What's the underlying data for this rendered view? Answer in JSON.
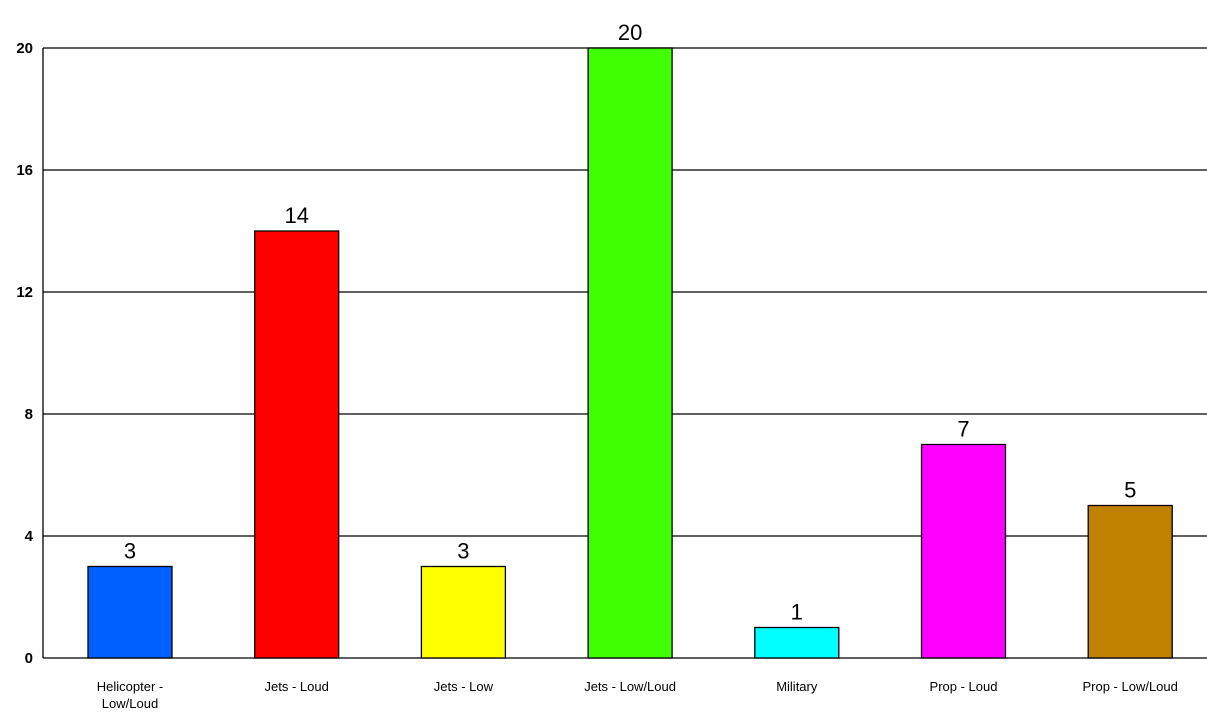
{
  "chart_data": {
    "type": "bar",
    "title": "",
    "xlabel": "",
    "ylabel": "",
    "ylim": [
      0,
      20
    ],
    "yticks": [
      0,
      4,
      8,
      12,
      16,
      20
    ],
    "grid": true,
    "categories": [
      [
        "Helicopter -",
        "Low/Loud"
      ],
      [
        "Jets - Loud"
      ],
      [
        "Jets - Low"
      ],
      [
        "Jets - Low/Loud"
      ],
      [
        "Military"
      ],
      [
        "Prop - Loud"
      ],
      [
        "Prop - Low/Loud"
      ]
    ],
    "values": [
      3,
      14,
      3,
      20,
      1,
      7,
      5
    ],
    "data_labels": [
      "3",
      "14",
      "3",
      "20",
      "1",
      "7",
      "5"
    ],
    "colors": [
      "#0060ff",
      "#ff0000",
      "#ffff00",
      "#40ff00",
      "#00ffff",
      "#ff00ff",
      "#c08000"
    ]
  }
}
